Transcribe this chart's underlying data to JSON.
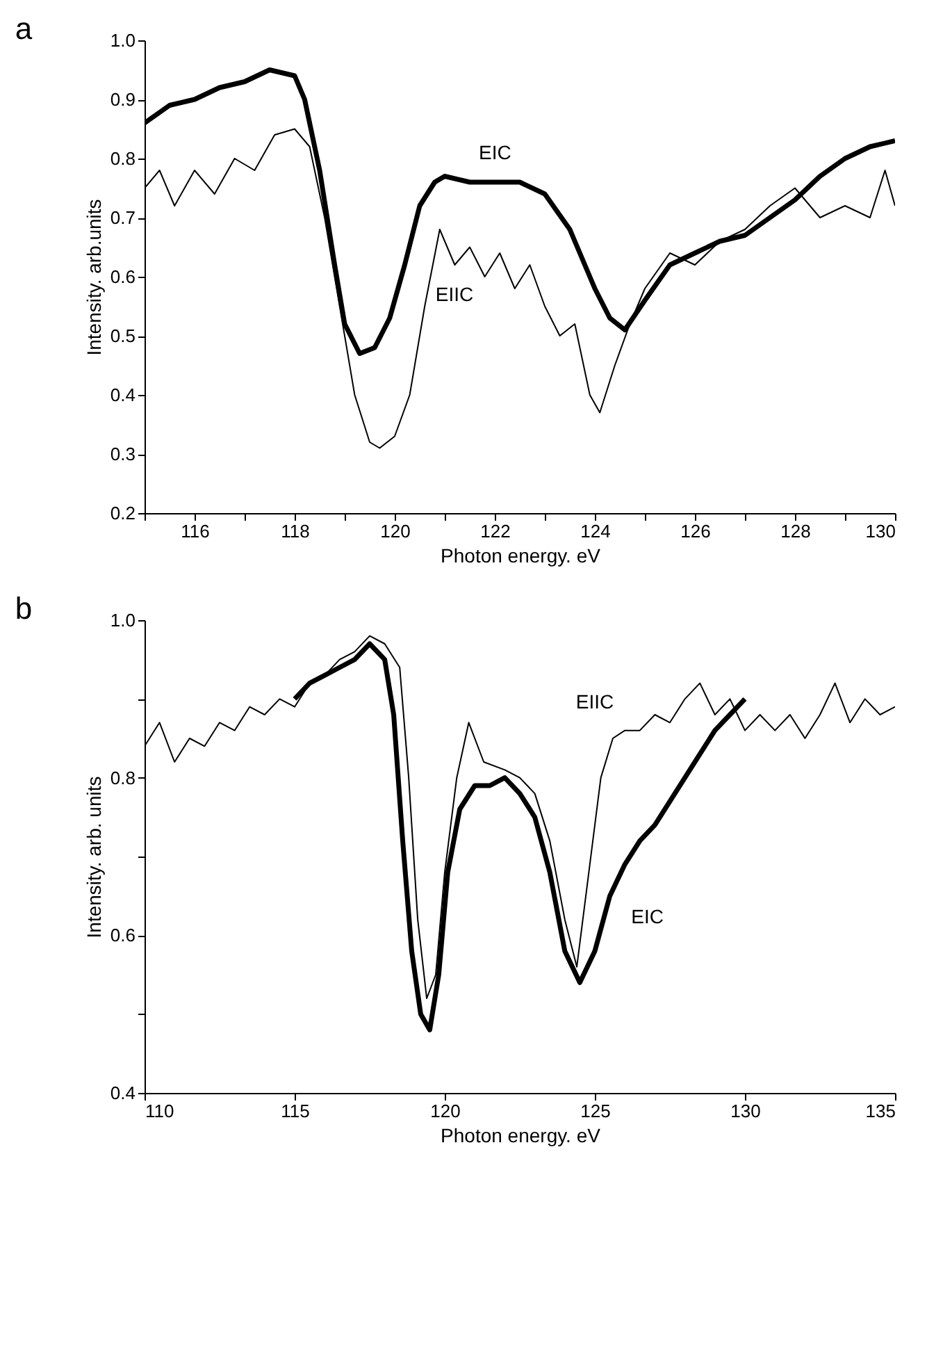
{
  "chart_data": [
    {
      "type": "line",
      "title": "a",
      "xlabel": "Photon energy. eV",
      "ylabel": "Intensity. arb.units",
      "xlim": [
        115,
        130
      ],
      "ylim": [
        0.2,
        1.0
      ],
      "xticks": [
        {
          "value": 115,
          "label": null
        },
        116,
        {
          "value": 117,
          "label": null
        },
        118,
        {
          "value": 119,
          "label": null
        },
        120,
        {
          "value": 121,
          "label": null
        },
        122,
        {
          "value": 123,
          "label": null
        },
        124,
        {
          "value": 125,
          "label": null
        },
        126,
        {
          "value": 127,
          "label": null
        },
        128,
        {
          "value": 129,
          "label": null
        },
        130
      ],
      "yticks": [
        0.2,
        0.3,
        0.4,
        0.5,
        0.6,
        0.7,
        0.8,
        0.9,
        {
          "value": 1.0,
          "label": "1.0"
        }
      ],
      "series": [
        {
          "color": "#000000",
          "x": [
            115,
            115.5,
            116,
            116.5,
            117,
            117.5,
            118,
            118.2,
            118.5,
            118.8,
            119,
            119.3,
            119.6,
            119.9,
            120.2,
            120.5,
            120.8,
            121,
            121.5,
            122,
            122.5,
            123,
            123.5,
            124,
            124.3,
            124.6,
            125,
            125.5,
            126,
            126.5,
            127,
            127.5,
            128,
            128.5,
            129,
            129.5,
            130
          ],
          "values": [
            0.86,
            0.89,
            0.9,
            0.92,
            0.93,
            0.95,
            0.94,
            0.9,
            0.78,
            0.62,
            0.52,
            0.47,
            0.48,
            0.53,
            0.62,
            0.72,
            0.76,
            0.77,
            0.76,
            0.76,
            0.76,
            0.74,
            0.68,
            0.58,
            0.53,
            0.51,
            0.56,
            0.62,
            0.64,
            0.66,
            0.67,
            0.7,
            0.73,
            0.77,
            0.8,
            0.82,
            0.83
          ]
        },
        {
          "color": "#000000",
          "x": [
            115,
            115.3,
            115.6,
            116,
            116.4,
            116.8,
            117.2,
            117.6,
            118,
            118.3,
            118.6,
            118.9,
            119.2,
            119.5,
            119.7,
            120,
            120.3,
            120.6,
            120.9,
            121.2,
            121.5,
            121.8,
            122.1,
            122.4,
            122.7,
            123,
            123.3,
            123.6,
            123.9,
            124.1,
            124.4,
            124.7,
            125,
            125.5,
            126,
            126.5,
            127,
            127.5,
            128,
            128.5,
            129,
            129.5,
            129.8,
            130
          ],
          "values": [
            0.75,
            0.78,
            0.72,
            0.78,
            0.74,
            0.8,
            0.78,
            0.84,
            0.85,
            0.82,
            0.7,
            0.55,
            0.4,
            0.32,
            0.31,
            0.33,
            0.4,
            0.55,
            0.68,
            0.62,
            0.65,
            0.6,
            0.64,
            0.58,
            0.62,
            0.55,
            0.5,
            0.52,
            0.4,
            0.37,
            0.45,
            0.52,
            0.58,
            0.64,
            0.62,
            0.66,
            0.68,
            0.72,
            0.75,
            0.7,
            0.72,
            0.7,
            0.78,
            0.72
          ]
        }
      ],
      "annotations": [
        "EIC",
        "EIIC"
      ]
    },
    {
      "type": "line",
      "title": "b",
      "xlabel": "Photon energy. eV",
      "ylabel": "Intensity. arb. units",
      "xlim": [
        110,
        135
      ],
      "ylim": [
        0.4,
        1.0
      ],
      "xticks": [
        110,
        115,
        120,
        125,
        130,
        135
      ],
      "yticks": [
        0.4,
        {
          "value": 0.5,
          "label": null
        },
        0.6,
        {
          "value": 0.7,
          "label": null
        },
        0.8,
        {
          "value": 0.9,
          "label": null
        },
        {
          "value": 1.0,
          "label": "1.0"
        }
      ],
      "series": [
        {
          "color": "#000000",
          "x": [
            110,
            110.5,
            111,
            111.5,
            112,
            112.5,
            113,
            113.5,
            114,
            114.5,
            115,
            115.5,
            116,
            116.5,
            117,
            117.5,
            118,
            118.5,
            118.8,
            119.1,
            119.4,
            119.7,
            120,
            120.4,
            120.8,
            121.3,
            122,
            122.5,
            123,
            123.5,
            124,
            124.4,
            124.8,
            125.2,
            125.6,
            126,
            126.5,
            127,
            127.5,
            128,
            128.5,
            129,
            129.5,
            130,
            130.5,
            131,
            131.5,
            132,
            132.5,
            133,
            133.5,
            134,
            134.5,
            135
          ],
          "values": [
            0.84,
            0.87,
            0.82,
            0.85,
            0.84,
            0.87,
            0.86,
            0.89,
            0.88,
            0.9,
            0.89,
            0.92,
            0.93,
            0.95,
            0.96,
            0.98,
            0.97,
            0.94,
            0.8,
            0.62,
            0.52,
            0.55,
            0.68,
            0.8,
            0.87,
            0.82,
            0.81,
            0.8,
            0.78,
            0.72,
            0.62,
            0.56,
            0.68,
            0.8,
            0.85,
            0.86,
            0.86,
            0.88,
            0.87,
            0.9,
            0.92,
            0.88,
            0.9,
            0.86,
            0.88,
            0.86,
            0.88,
            0.85,
            0.88,
            0.92,
            0.87,
            0.9,
            0.88,
            0.89
          ]
        },
        {
          "color": "#000000",
          "x": [
            115,
            115.5,
            116,
            116.5,
            117,
            117.5,
            118,
            118.3,
            118.6,
            118.9,
            119.2,
            119.5,
            119.8,
            120.1,
            120.5,
            121,
            121.5,
            122,
            122.5,
            123,
            123.5,
            124,
            124.5,
            125,
            125.5,
            126,
            126.5,
            127,
            127.5,
            128,
            128.5,
            129,
            129.5,
            130
          ],
          "values": [
            0.9,
            0.92,
            0.93,
            0.94,
            0.95,
            0.97,
            0.95,
            0.88,
            0.72,
            0.58,
            0.5,
            0.48,
            0.55,
            0.68,
            0.76,
            0.79,
            0.79,
            0.8,
            0.78,
            0.75,
            0.68,
            0.58,
            0.54,
            0.58,
            0.65,
            0.69,
            0.72,
            0.74,
            0.77,
            0.8,
            0.83,
            0.86,
            0.88,
            0.9
          ]
        }
      ],
      "annotations": [
        "EIIC",
        "EIC"
      ]
    }
  ]
}
